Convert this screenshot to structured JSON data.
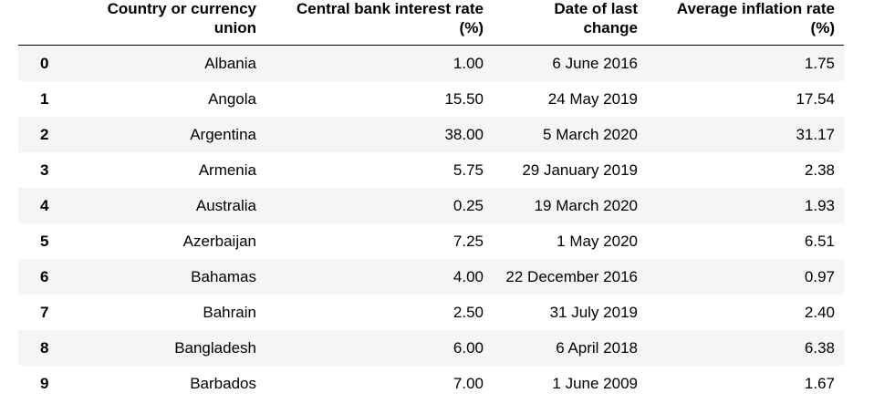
{
  "table": {
    "columns": [
      "",
      "Country or currency union",
      "Central bank interest rate (%)",
      "Date of last change",
      "Average inflation rate (%)"
    ],
    "rows": [
      {
        "index": "0",
        "country": "Albania",
        "rate": "1.00",
        "date": "6 June 2016",
        "inflation": "1.75"
      },
      {
        "index": "1",
        "country": "Angola",
        "rate": "15.50",
        "date": "24 May 2019",
        "inflation": "17.54"
      },
      {
        "index": "2",
        "country": "Argentina",
        "rate": "38.00",
        "date": "5 March 2020",
        "inflation": "31.17"
      },
      {
        "index": "3",
        "country": "Armenia",
        "rate": "5.75",
        "date": "29 January 2019",
        "inflation": "2.38"
      },
      {
        "index": "4",
        "country": "Australia",
        "rate": "0.25",
        "date": "19 March 2020",
        "inflation": "1.93"
      },
      {
        "index": "5",
        "country": "Azerbaijan",
        "rate": "7.25",
        "date": "1 May 2020",
        "inflation": "6.51"
      },
      {
        "index": "6",
        "country": "Bahamas",
        "rate": "4.00",
        "date": "22 December 2016",
        "inflation": "0.97"
      },
      {
        "index": "7",
        "country": "Bahrain",
        "rate": "2.50",
        "date": "31 July 2019",
        "inflation": "2.40"
      },
      {
        "index": "8",
        "country": "Bangladesh",
        "rate": "6.00",
        "date": "6 April 2018",
        "inflation": "6.38"
      },
      {
        "index": "9",
        "country": "Barbados",
        "rate": "7.00",
        "date": "1 June 2009",
        "inflation": "1.67"
      }
    ]
  }
}
